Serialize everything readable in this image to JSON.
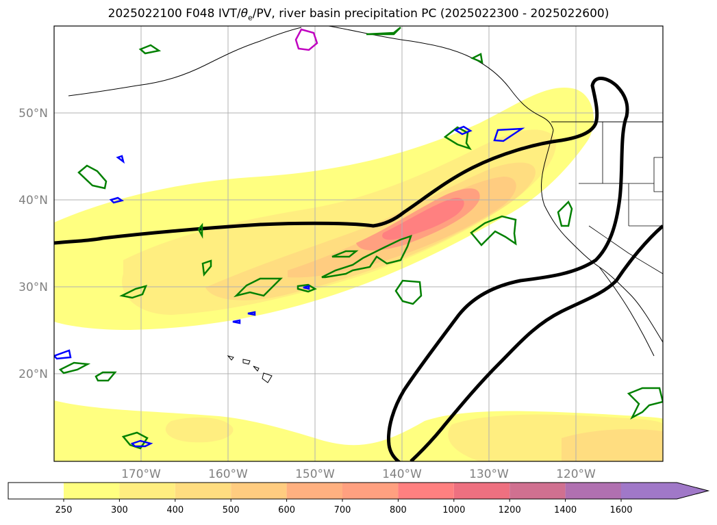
{
  "title": {
    "prefix": "2025022100 F048 IVT/",
    "theta": "θ",
    "theta_sub": "e",
    "suffix": "/PV, river basin precipitation PC (2025022300 - 2025022600)"
  },
  "map": {
    "projection": "equirectangular",
    "lon_range": [
      -180,
      -110
    ],
    "lat_range": [
      10,
      60
    ],
    "gridlines": true,
    "lat_labels": [
      "50°N",
      "40°N",
      "30°N",
      "20°N"
    ],
    "lon_labels": [
      "170°W",
      "160°W",
      "150°W",
      "140°W",
      "130°W",
      "120°W"
    ]
  },
  "colorbar": {
    "ticks": [
      "250",
      "300",
      "400",
      "500",
      "600",
      "700",
      "800",
      "1000",
      "1200",
      "1400",
      "1600"
    ],
    "colors": [
      "#ffff80",
      "#ffee80",
      "#ffdd80",
      "#ffcc80",
      "#ffb080",
      "#ffa080",
      "#ff8080",
      "#ee7080",
      "#d07090",
      "#b070b0",
      "#a078c8"
    ],
    "extend": "max"
  },
  "colors": {
    "ivt_contour": "#008000",
    "pv_contour": "#0000ff",
    "theta_contour": "#000000",
    "magenta_contour": "#c000c0",
    "coastline": "#000000"
  }
}
